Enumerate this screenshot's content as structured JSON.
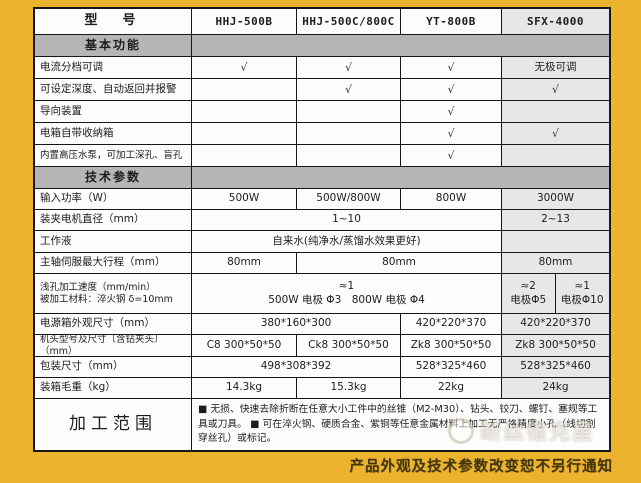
{
  "colors": {
    "frame_yellow": "#ecb32e",
    "band_gray": "#b5b5b5",
    "highlight_gray": "#e7e7e7",
    "border": "#171717",
    "notice_text": "#42350b"
  },
  "table": {
    "rows": [
      {
        "cells": [
          {
            "t": "型　号",
            "c": [
              0,
              0
            ],
            "cls": "modelhead"
          },
          {
            "t": "HHJ-500B",
            "c": [
              1,
              1
            ],
            "cls": "head"
          },
          {
            "t": "HHJ-500C/800C",
            "c": [
              2,
              2
            ],
            "cls": "head"
          },
          {
            "t": "YT-800B",
            "c": [
              3,
              3
            ],
            "cls": "head"
          },
          {
            "t": "SFX-4000",
            "c": [
              4,
              4
            ],
            "cls": "head gray"
          }
        ]
      },
      {
        "cells": [
          {
            "t": "基本功能",
            "c": [
              0,
              0
            ],
            "cls": "band"
          },
          {
            "t": "",
            "c": [
              1,
              4
            ],
            "cls": "band"
          }
        ]
      },
      {
        "cells": [
          {
            "t": "电流分档可调",
            "c": [
              0,
              0
            ],
            "cls": "label"
          },
          {
            "t": "√",
            "c": [
              1,
              1
            ],
            "cls": "check"
          },
          {
            "t": "√",
            "c": [
              2,
              2
            ],
            "cls": "check"
          },
          {
            "t": "√",
            "c": [
              3,
              3
            ],
            "cls": "check"
          },
          {
            "t": "无极可调",
            "c": [
              4,
              4
            ],
            "cls": "gray"
          }
        ]
      },
      {
        "cells": [
          {
            "t": "可设定深度、自动返回并报警",
            "c": [
              0,
              0
            ],
            "cls": "label"
          },
          {
            "t": "",
            "c": [
              1,
              1
            ]
          },
          {
            "t": "√",
            "c": [
              2,
              2
            ],
            "cls": "check"
          },
          {
            "t": "√",
            "c": [
              3,
              3
            ],
            "cls": "check"
          },
          {
            "t": "√",
            "c": [
              4,
              4
            ],
            "cls": "check gray"
          }
        ]
      },
      {
        "cells": [
          {
            "t": "导向装置",
            "c": [
              0,
              0
            ],
            "cls": "label"
          },
          {
            "t": "",
            "c": [
              1,
              1
            ]
          },
          {
            "t": "",
            "c": [
              2,
              2
            ]
          },
          {
            "t": "√",
            "c": [
              3,
              3
            ],
            "cls": "check"
          },
          {
            "t": "",
            "c": [
              4,
              4
            ],
            "cls": "gray"
          }
        ]
      },
      {
        "cells": [
          {
            "t": "电箱自带收纳箱",
            "c": [
              0,
              0
            ],
            "cls": "label"
          },
          {
            "t": "",
            "c": [
              1,
              1
            ]
          },
          {
            "t": "",
            "c": [
              2,
              2
            ]
          },
          {
            "t": "√",
            "c": [
              3,
              3
            ],
            "cls": "check"
          },
          {
            "t": "√",
            "c": [
              4,
              4
            ],
            "cls": "check gray"
          }
        ]
      },
      {
        "cells": [
          {
            "t": "内置高压水泵，可加工深孔、盲孔",
            "c": [
              0,
              0
            ],
            "cls": "label smalllabel"
          },
          {
            "t": "",
            "c": [
              1,
              1
            ]
          },
          {
            "t": "",
            "c": [
              2,
              2
            ]
          },
          {
            "t": "√",
            "c": [
              3,
              3
            ],
            "cls": "check"
          },
          {
            "t": "",
            "c": [
              4,
              4
            ],
            "cls": "gray"
          }
        ]
      },
      {
        "cells": [
          {
            "t": "技术参数",
            "c": [
              0,
              0
            ],
            "cls": "band"
          },
          {
            "t": "",
            "c": [
              1,
              4
            ],
            "cls": "band"
          }
        ]
      },
      {
        "cells": [
          {
            "t": "输入功率（W）",
            "c": [
              0,
              0
            ],
            "cls": "label"
          },
          {
            "t": "500W",
            "c": [
              1,
              1
            ]
          },
          {
            "t": "500W/800W",
            "c": [
              2,
              2
            ]
          },
          {
            "t": "800W",
            "c": [
              3,
              3
            ]
          },
          {
            "t": "3000W",
            "c": [
              4,
              4
            ],
            "cls": "gray"
          }
        ]
      },
      {
        "cells": [
          {
            "t": "装夹电机直径（mm）",
            "c": [
              0,
              0
            ],
            "cls": "label"
          },
          {
            "t": "1~10",
            "c": [
              1,
              3
            ]
          },
          {
            "t": "2~13",
            "c": [
              4,
              4
            ],
            "cls": "gray"
          }
        ]
      },
      {
        "cells": [
          {
            "t": "工作液",
            "c": [
              0,
              0
            ],
            "cls": "label"
          },
          {
            "t": "自来水(纯净水/蒸馏水效果更好)",
            "c": [
              1,
              3
            ]
          },
          {
            "t": "",
            "c": [
              4,
              4
            ],
            "cls": "gray"
          }
        ]
      },
      {
        "cells": [
          {
            "t": "主轴伺服最大行程（mm）",
            "c": [
              0,
              0
            ],
            "cls": "label"
          },
          {
            "t": "80mm",
            "c": [
              1,
              1
            ]
          },
          {
            "t": "80mm",
            "c": [
              2,
              3
            ]
          },
          {
            "t": "80mm",
            "c": [
              4,
              4
            ],
            "cls": "gray"
          }
        ]
      },
      {
        "cells": [
          {
            "t": "浅孔加工速度（mm/min）\n被加工材料：淬火钢 δ=10mm",
            "c": [
              0,
              0
            ],
            "cls": "label smalllabel"
          },
          {
            "t": "≈1\n500W 电极 Φ3　800W 电极 Φ4",
            "c": [
              1,
              3
            ]
          },
          {
            "t": "≈2\n电极Φ5",
            "c": [
              4,
              4
            ],
            "half": "L",
            "cls": "gray"
          },
          {
            "t": "≈1\n电极Φ10",
            "c": [
              4,
              4
            ],
            "half": "R",
            "cls": "gray"
          }
        ]
      },
      {
        "cells": [
          {
            "t": "电源箱外观尺寸（mm）",
            "c": [
              0,
              0
            ],
            "cls": "label"
          },
          {
            "t": "380*160*300",
            "c": [
              1,
              2
            ]
          },
          {
            "t": "420*220*370",
            "c": [
              3,
              3
            ]
          },
          {
            "t": "420*220*370",
            "c": [
              4,
              4
            ],
            "cls": "gray"
          }
        ]
      },
      {
        "cells": [
          {
            "t": "机头型号及尺寸〔含钻夹头〕（mm）",
            "c": [
              0,
              0
            ],
            "cls": "label smalllabel"
          },
          {
            "t": "C8 300*50*50",
            "c": [
              1,
              1
            ]
          },
          {
            "t": "Ck8 300*50*50",
            "c": [
              2,
              2
            ]
          },
          {
            "t": "Zk8 300*50*50",
            "c": [
              3,
              3
            ]
          },
          {
            "t": "Zk8 300*50*50",
            "c": [
              4,
              4
            ],
            "cls": "gray"
          }
        ]
      },
      {
        "cells": [
          {
            "t": "包装尺寸（mm）",
            "c": [
              0,
              0
            ],
            "cls": "label"
          },
          {
            "t": "498*308*392",
            "c": [
              1,
              2
            ]
          },
          {
            "t": "528*325*460",
            "c": [
              3,
              3
            ]
          },
          {
            "t": "528*325*460",
            "c": [
              4,
              4
            ],
            "cls": "gray"
          }
        ]
      },
      {
        "cells": [
          {
            "t": "装箱毛重（kg）",
            "c": [
              0,
              0
            ],
            "cls": "label"
          },
          {
            "t": "14.3kg",
            "c": [
              1,
              1
            ]
          },
          {
            "t": "15.3kg",
            "c": [
              2,
              2
            ]
          },
          {
            "t": "22kg",
            "c": [
              3,
              3
            ]
          },
          {
            "t": "24kg",
            "c": [
              4,
              4
            ],
            "cls": "gray"
          }
        ]
      },
      {
        "cells": [
          {
            "t": "加工范围",
            "c": [
              0,
              0
            ],
            "cls": "big"
          },
          {
            "t": "■ 无损、快速去除折断在任意大小工件中的丝锥（M2-M30）、钻头、铰刀、螺钉、塞规等工具或刀具。 ■ 可在淬火钢、硬质合金、紫铜等任意金属材料上加工无严格精度小孔（线切割穿丝孔）或标记。",
            "c": [
              1,
              4
            ],
            "cls": "desc"
          }
        ]
      }
    ]
  },
  "footer": {
    "watermark": "断丝锥克星",
    "notice": "产品外观及技术参数改变恕不另行通知"
  }
}
